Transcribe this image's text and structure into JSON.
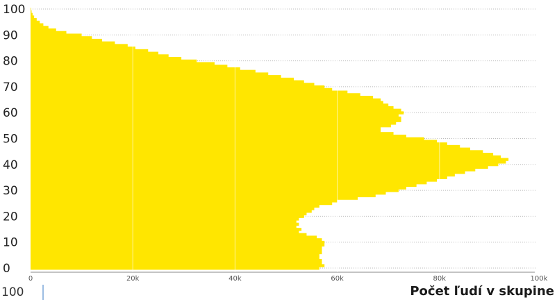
{
  "chart_data": {
    "type": "bar",
    "orientation": "horizontal",
    "xlabel": "Počet ľudí v skupine",
    "x_ticks": [
      "0",
      "20k",
      "40k",
      "60k",
      "80k",
      "100k"
    ],
    "y_ticks": [
      "0",
      "10",
      "20",
      "30",
      "40",
      "50",
      "60",
      "70",
      "80",
      "90",
      "100"
    ],
    "xlim": [
      0,
      100000
    ],
    "ylim": [
      0,
      100
    ],
    "grid": true,
    "colors": {
      "bar": "#ffe600",
      "grid": "#bbbbbb"
    },
    "categories": [
      0,
      1,
      2,
      3,
      4,
      5,
      6,
      7,
      8,
      9,
      10,
      11,
      12,
      13,
      14,
      15,
      16,
      17,
      18,
      19,
      20,
      21,
      22,
      23,
      24,
      25,
      26,
      27,
      28,
      29,
      30,
      31,
      32,
      33,
      34,
      35,
      36,
      37,
      38,
      39,
      40,
      41,
      42,
      43,
      44,
      45,
      46,
      47,
      48,
      49,
      50,
      51,
      52,
      53,
      54,
      55,
      56,
      57,
      58,
      59,
      60,
      61,
      62,
      63,
      64,
      65,
      66,
      67,
      68,
      69,
      70,
      71,
      72,
      73,
      74,
      75,
      76,
      77,
      78,
      79,
      80,
      81,
      82,
      83,
      84,
      85,
      86,
      87,
      88,
      89,
      90,
      91,
      92,
      93,
      94,
      95,
      96,
      97,
      98,
      99,
      100
    ],
    "values": [
      56500,
      57500,
      57000,
      57000,
      56500,
      56500,
      57000,
      57000,
      57000,
      57500,
      57500,
      57000,
      56000,
      54000,
      52500,
      53000,
      52000,
      52500,
      52000,
      52500,
      53500,
      54000,
      55000,
      55500,
      56500,
      59000,
      60000,
      64000,
      67500,
      69500,
      72000,
      73500,
      75500,
      77500,
      79500,
      81500,
      83000,
      85000,
      87000,
      89500,
      91500,
      93000,
      93500,
      92000,
      90500,
      88500,
      86000,
      84000,
      81500,
      79500,
      77000,
      73500,
      71000,
      68500,
      68500,
      70500,
      71500,
      72500,
      72500,
      72000,
      73000,
      72500,
      71000,
      70000,
      69000,
      68500,
      67000,
      64500,
      62000,
      59000,
      57500,
      55500,
      53500,
      51500,
      49000,
      46500,
      44000,
      41000,
      38500,
      36000,
      32500,
      29500,
      27000,
      25000,
      23000,
      20500,
      19000,
      16500,
      14000,
      12000,
      10000,
      7000,
      5000,
      3500,
      2500,
      1800,
      1200,
      700,
      400,
      200,
      100
    ]
  },
  "bottom_label": "100"
}
